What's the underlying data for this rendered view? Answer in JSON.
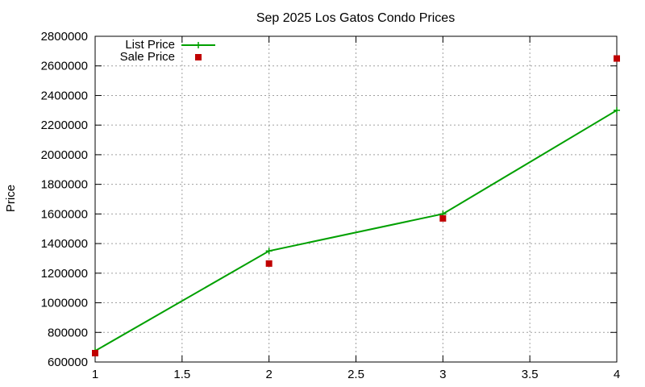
{
  "chart_data": {
    "type": "line",
    "title": "Sep 2025 Los Gatos Condo Prices",
    "xlabel": "",
    "ylabel": "Price",
    "xlim": [
      1,
      4
    ],
    "ylim": [
      600000,
      2800000
    ],
    "x_ticks": [
      "1",
      "1.5",
      "2",
      "2.5",
      "3",
      "3.5",
      "4"
    ],
    "y_ticks": [
      "600000",
      "800000",
      "1000000",
      "1200000",
      "1400000",
      "1600000",
      "1800000",
      "2000000",
      "2200000",
      "2400000",
      "2600000",
      "2800000"
    ],
    "grid": true,
    "legend_position": "top-left",
    "series": [
      {
        "name": "List Price",
        "style": "lines+points",
        "marker": "plus",
        "color": "#00a000",
        "x": [
          1,
          2,
          3,
          4
        ],
        "y": [
          675000,
          1350000,
          1600000,
          2300000
        ]
      },
      {
        "name": "Sale Price",
        "style": "points",
        "marker": "square",
        "color": "#c00000",
        "x": [
          1,
          2,
          3,
          4
        ],
        "y": [
          660000,
          1265000,
          1570000,
          2650000
        ]
      }
    ]
  }
}
